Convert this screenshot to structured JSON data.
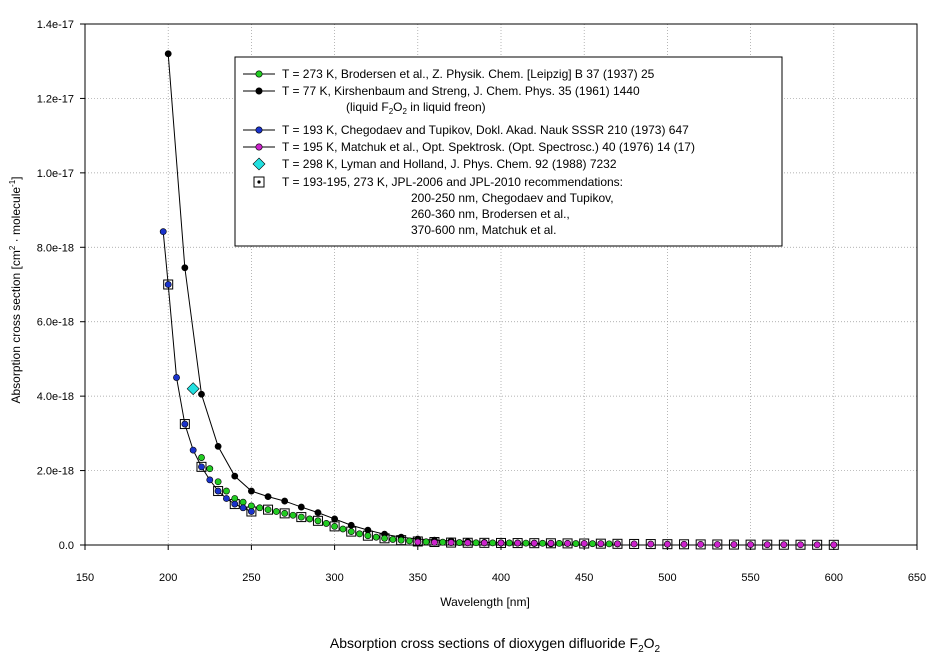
{
  "chart_data": {
    "type": "scatter",
    "title": "",
    "caption": {
      "text": "Absorption cross sections of dioxygen difluoride F",
      "sub1": "2",
      "mid": "O",
      "sub2": "2"
    },
    "xlabel": "Wavelength [nm]",
    "ylabel": {
      "p1": "Absorption cross section [cm",
      "sup1": "2",
      "p2": " · molecule",
      "sup2": "-1",
      "p3": "]"
    },
    "xlim": [
      150,
      650
    ],
    "ylim": [
      0,
      1.4e-17
    ],
    "xticks": [
      150,
      200,
      250,
      300,
      350,
      400,
      450,
      500,
      550,
      600,
      650
    ],
    "xtick_labels": [
      "150",
      "200",
      "250",
      "300",
      "350",
      "400",
      "450",
      "500",
      "550",
      "600",
      "650"
    ],
    "yticks": [
      0,
      2e-18,
      4e-18,
      6e-18,
      8e-18,
      1e-17,
      1.2e-17,
      1.4e-17
    ],
    "ytick_labels": [
      "0.0",
      "2.0e-18",
      "4.0e-18",
      "6.0e-18",
      "8.0e-18",
      "1.0e-17",
      "1.2e-17",
      "1.4e-17"
    ],
    "grid": true,
    "legend_position": "top-center",
    "series": [
      {
        "name": "T = 273 K, Brodersen et al., Z. Physik. Chem. [Leipzig] B 37 (1937) 25",
        "marker": "circle",
        "color": "#22cc22",
        "line": false,
        "x": [
          220,
          225,
          230,
          235,
          240,
          245,
          250,
          255,
          260,
          265,
          270,
          275,
          280,
          285,
          290,
          295,
          300,
          305,
          310,
          315,
          320,
          325,
          330,
          335,
          340,
          345,
          350,
          355,
          360,
          365,
          370,
          375,
          380,
          385,
          390,
          395,
          400,
          405,
          410,
          415,
          420,
          425,
          430,
          435,
          440,
          445,
          450,
          455,
          460,
          465,
          470
        ],
        "y": [
          2.35e-18,
          2.05e-18,
          1.7e-18,
          1.45e-18,
          1.25e-18,
          1.15e-18,
          1.05e-18,
          1e-18,
          9.5e-19,
          9e-19,
          8.5e-19,
          8e-19,
          7.5e-19,
          7e-19,
          6.5e-19,
          5.8e-19,
          5e-19,
          4.3e-19,
          3.6e-19,
          3e-19,
          2.5e-19,
          2.1e-19,
          1.8e-19,
          1.5e-19,
          1.3e-19,
          1.1e-19,
          9.5e-20,
          8.5e-20,
          8e-20,
          7.5e-20,
          7e-20,
          6.5e-20,
          6.2e-20,
          6e-20,
          5.8e-20,
          5.7e-20,
          5.6e-20,
          5.5e-20,
          5.3e-20,
          5.1e-20,
          4.9e-20,
          4.7e-20,
          4.5e-20,
          4.3e-20,
          4.1e-20,
          3.9e-20,
          3.7e-20,
          3.5e-20,
          3.3e-20,
          3.1e-20,
          3e-20
        ]
      },
      {
        "name": "T = 77 K, Kirshenbaum and Streng, J. Chem. Phys. 35 (1961) 1440",
        "name_line2": {
          "p1": "(liquid F",
          "sub1": "2",
          "p2": "O",
          "sub2": "2",
          "p3": " in liquid freon)"
        },
        "marker": "circle",
        "color": "#000000",
        "line": true,
        "x": [
          200,
          210,
          220,
          230,
          240,
          250,
          260,
          270,
          280,
          290,
          300,
          310,
          320,
          330,
          340,
          350,
          360,
          370,
          380,
          390,
          400,
          410,
          420,
          430
        ],
        "y": [
          1.32e-17,
          7.45e-18,
          4.05e-18,
          2.65e-18,
          1.85e-18,
          1.45e-18,
          1.3e-18,
          1.18e-18,
          1.02e-18,
          8.7e-19,
          7e-19,
          5.3e-19,
          4e-19,
          2.9e-19,
          2.1e-19,
          1.6e-19,
          1.3e-19,
          1.1e-19,
          9e-20,
          7e-20,
          6e-20,
          5e-20,
          4e-20,
          3e-20
        ]
      },
      {
        "name": "T = 193 K, Chegodaev and Tupikov, Dokl. Akad. Nauk SSSR 210 (1973) 647",
        "marker": "circle",
        "color": "#1a33cc",
        "line": true,
        "x": [
          197,
          200,
          205,
          210,
          215,
          220,
          225,
          230,
          235,
          240,
          245,
          250
        ],
        "y": [
          8.42e-18,
          7e-18,
          4.5e-18,
          3.25e-18,
          2.55e-18,
          2.1e-18,
          1.75e-18,
          1.45e-18,
          1.25e-18,
          1.1e-18,
          1e-18,
          9e-19
        ]
      },
      {
        "name": "T = 195 K, Matchuk et al., Opt. Spektrosk. (Opt. Spectrosc.) 40 (1976) 14 (17)",
        "marker": "circle",
        "color": "#cc22cc",
        "line": false,
        "x": [
          350,
          360,
          370,
          380,
          390,
          400,
          410,
          420,
          430,
          440,
          450,
          460,
          470,
          480,
          490,
          500,
          510,
          520,
          530,
          540,
          550,
          560,
          570,
          580,
          590,
          600
        ],
        "y": [
          8e-20,
          7e-20,
          6.5e-20,
          6e-20,
          5.8e-20,
          5.5e-20,
          5.2e-20,
          4.9e-20,
          4.6e-20,
          4.3e-20,
          4e-20,
          3.6e-20,
          3.2e-20,
          2.8e-20,
          2.5e-20,
          2.2e-20,
          1.9e-20,
          1.6e-20,
          1.4e-20,
          1.2e-20,
          1e-20,
          9e-21,
          8e-21,
          7e-21,
          6e-21,
          5e-21
        ]
      },
      {
        "name": "T = 298 K,  Lyman and Holland, J. Phys. Chem. 92 (1988) 7232",
        "marker": "diamond",
        "color": "#22e0e0",
        "line": false,
        "x": [
          215
        ],
        "y": [
          4.2e-18
        ]
      },
      {
        "name": "T = 193-195, 273 K, JPL-2006  and JPL-2010 recommendations:",
        "name_extra": [
          "200-250 nm, Chegodaev and Tupikov,",
          "260-360 nm, Brodersen et al.,",
          "370-600 nm, Matchuk et al."
        ],
        "marker": "square-dot",
        "color": "#000000",
        "line": false,
        "x": [
          200,
          210,
          220,
          230,
          240,
          250,
          260,
          270,
          280,
          290,
          300,
          310,
          320,
          330,
          340,
          350,
          360,
          370,
          380,
          390,
          400,
          410,
          420,
          430,
          440,
          450,
          460,
          470,
          480,
          490,
          500,
          510,
          520,
          530,
          540,
          550,
          560,
          570,
          580,
          590,
          600
        ],
        "y": [
          7e-18,
          3.25e-18,
          2.1e-18,
          1.45e-18,
          1.1e-18,
          9e-19,
          9.5e-19,
          8.5e-19,
          7.5e-19,
          6.5e-19,
          5e-19,
          3.6e-19,
          2.5e-19,
          1.8e-19,
          1.3e-19,
          9.5e-20,
          8e-20,
          6.5e-20,
          6e-20,
          5.8e-20,
          5.5e-20,
          5.2e-20,
          4.9e-20,
          4.6e-20,
          4.3e-20,
          4e-20,
          3.6e-20,
          3.2e-20,
          2.8e-20,
          2.5e-20,
          2.2e-20,
          1.9e-20,
          1.6e-20,
          1.4e-20,
          1.2e-20,
          1e-20,
          9e-21,
          8e-21,
          7e-21,
          6e-21,
          5e-21
        ]
      }
    ]
  }
}
